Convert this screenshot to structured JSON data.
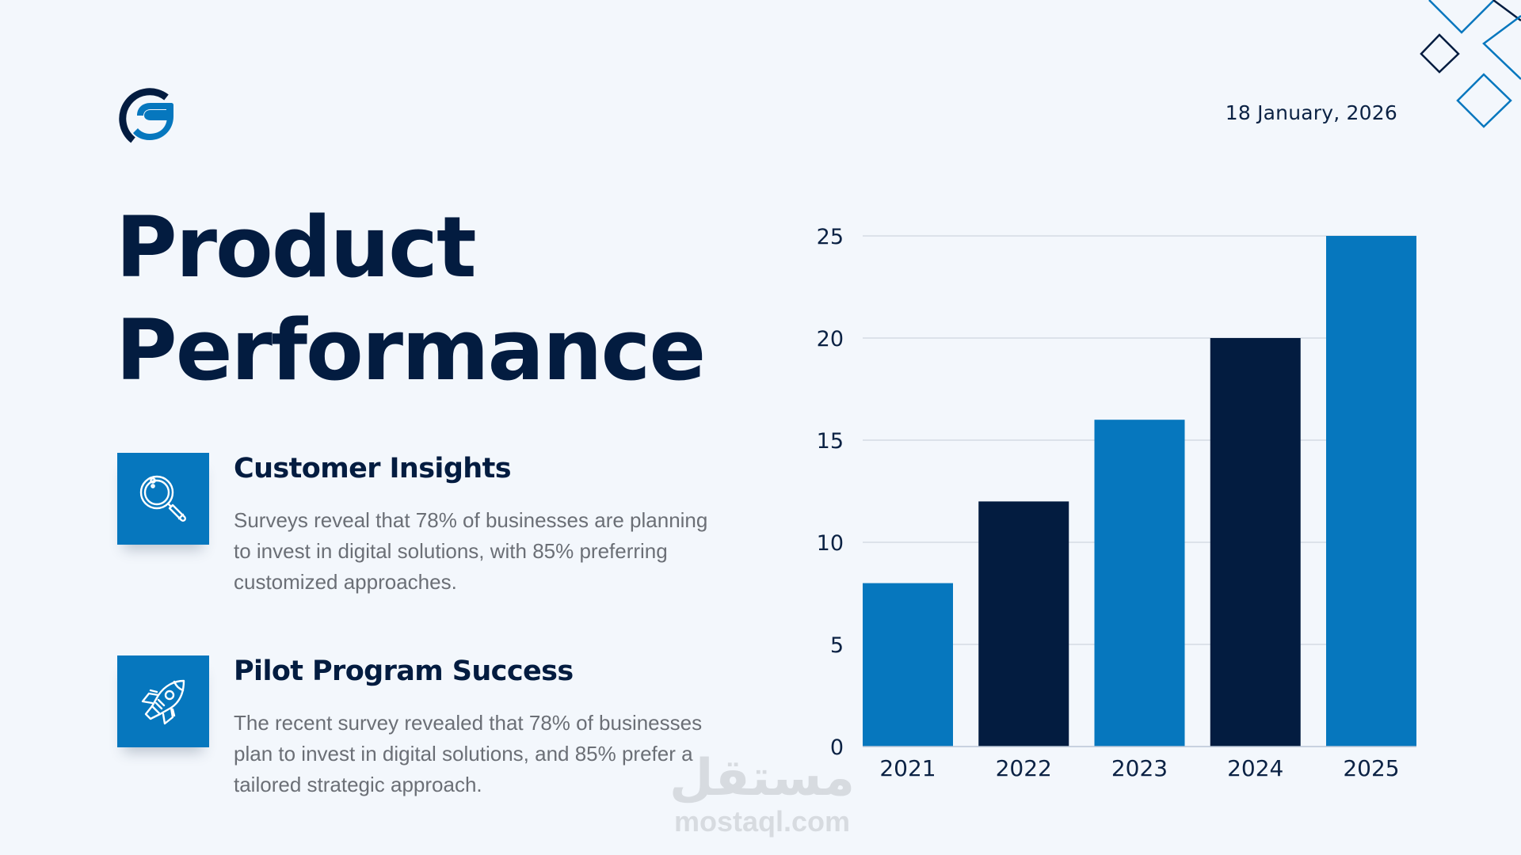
{
  "logo": {
    "name": "G logo",
    "colors": [
      "#031c40",
      "#0677be"
    ]
  },
  "date": "18 January, 2026",
  "title": {
    "line1": "Product",
    "line2": "Performance"
  },
  "features": [
    {
      "icon": "magnifier-icon",
      "heading": "Customer Insights",
      "body": "Surveys reveal that 78% of businesses are planning to invest in digital solutions, with 85% preferring customized approaches."
    },
    {
      "icon": "rocket-icon",
      "heading": "Pilot Program Success",
      "body": "The recent survey revealed that 78% of businesses plan to invest in digital solutions, and 85% prefer a tailored strategic approach."
    }
  ],
  "watermark": {
    "arabic": "مستقل",
    "latin": "mostaql.com"
  },
  "colors": {
    "navy": "#031c40",
    "blue": "#0677be",
    "background": "#f3f7fc",
    "grid": "#cfd6df"
  },
  "chart_data": {
    "type": "bar",
    "title": "",
    "xlabel": "",
    "ylabel": "",
    "categories": [
      "2021",
      "2022",
      "2023",
      "2024",
      "2025"
    ],
    "values": [
      8,
      12,
      16,
      20,
      25
    ],
    "bar_colors": [
      "#0677be",
      "#031c40",
      "#0677be",
      "#031c40",
      "#0677be"
    ],
    "ylim": [
      0,
      25
    ],
    "yticks": [
      0,
      5,
      10,
      15,
      20,
      25
    ],
    "grid": true,
    "legend": "none"
  }
}
